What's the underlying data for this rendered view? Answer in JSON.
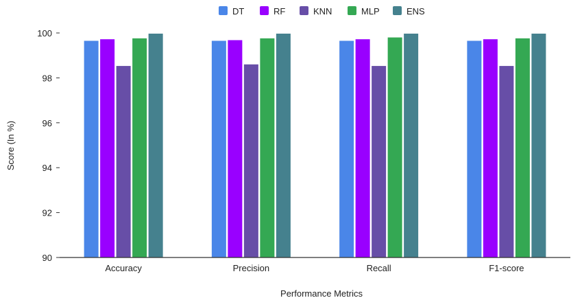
{
  "chart_data": {
    "type": "bar",
    "title": "",
    "xlabel": "Performance Metrics",
    "ylabel": "Score (In %)",
    "ylim": [
      90,
      100
    ],
    "yticks": [
      90,
      92,
      94,
      96,
      98,
      100
    ],
    "categories": [
      "Accuracy",
      "Precision",
      "Recall",
      "F1-score"
    ],
    "series": [
      {
        "name": "DT",
        "color": "#4a86e8",
        "values": [
          99.65,
          99.65,
          99.65,
          99.65
        ]
      },
      {
        "name": "RF",
        "color": "#9900ff",
        "values": [
          99.72,
          99.68,
          99.72,
          99.72
        ]
      },
      {
        "name": "KNN",
        "color": "#674ea7",
        "values": [
          98.53,
          98.6,
          98.53,
          98.53
        ]
      },
      {
        "name": "MLP",
        "color": "#34a853",
        "values": [
          99.76,
          99.76,
          99.8,
          99.76
        ]
      },
      {
        "name": "ENS",
        "color": "#45818e",
        "values": [
          99.97,
          99.97,
          99.97,
          99.97
        ]
      }
    ],
    "legend_position": "top-center",
    "grid": false
  }
}
